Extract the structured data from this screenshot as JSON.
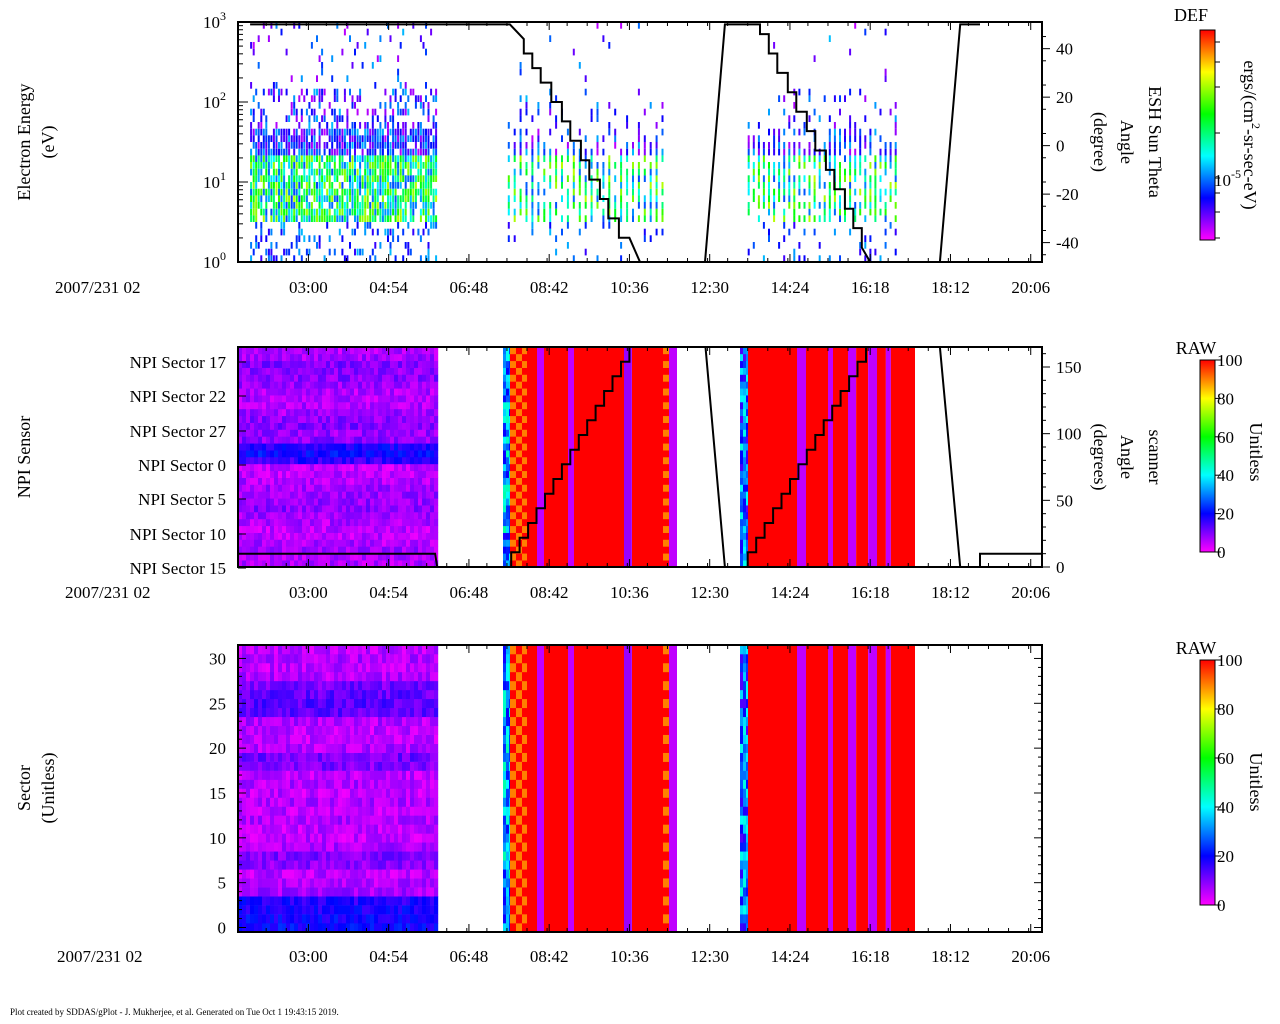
{
  "footer": "Plot created by SDDAS/gPlot - J. Mukherjee, et al.  Generated on Tue Oct 1 19:43:15 2019.",
  "time_axis": {
    "date_label": "2007/231 02",
    "range_hours": [
      1.333,
      20.367
    ],
    "ticks": [
      "03:00",
      "04:54",
      "06:48",
      "08:42",
      "10:36",
      "12:30",
      "14:24",
      "16:18",
      "18:12",
      "20:06"
    ],
    "tick_hours": [
      3.0,
      4.9,
      6.8,
      8.7,
      10.6,
      12.5,
      14.4,
      16.3,
      18.2,
      20.1
    ]
  },
  "colors": {
    "line": "#000000",
    "frame": "#000000"
  },
  "chart_data": [
    {
      "type": "heatmap",
      "ylabel": [
        "Electron Energy",
        "(eV)"
      ],
      "yscale": "log",
      "ylim": [
        1,
        1000
      ],
      "yticks": [
        {
          "base": "10",
          "exp": "0",
          "v": 1
        },
        {
          "base": "10",
          "exp": "1",
          "v": 10
        },
        {
          "base": "10",
          "exp": "2",
          "v": 100
        },
        {
          "base": "10",
          "exp": "3",
          "v": 1000
        }
      ],
      "data_intervals": [
        {
          "start": 1.62,
          "end": 6.0,
          "column_spacing_h": 0.06
        },
        {
          "start": 7.72,
          "end": 11.37,
          "column_spacing_h": 0.14
        },
        {
          "start": 13.4,
          "end": 16.96,
          "column_spacing_h": 0.12
        }
      ],
      "colorbar": {
        "title": "DEF",
        "label_pre": "ergs/(cm",
        "label_sup": "2",
        "label_post": "-sr-sec-eV)",
        "tick_base": "10",
        "tick_exp": "-5",
        "tick_level": 0.3
      },
      "right_axis": {
        "label": [
          "ESH Sun Theta",
          "Angle",
          "(degree)"
        ],
        "ylim": [
          -48,
          51
        ],
        "ticks": [
          "40",
          "20",
          "0",
          "-20",
          "-40"
        ],
        "tick_values": [
          40,
          20,
          0,
          -20,
          -40
        ]
      },
      "line": [
        [
          1.62,
          50
        ],
        [
          7.77,
          50
        ],
        [
          8.1,
          44
        ],
        [
          8.1,
          38
        ],
        [
          8.3,
          38
        ],
        [
          8.3,
          32
        ],
        [
          8.5,
          32
        ],
        [
          8.5,
          26
        ],
        [
          8.75,
          26
        ],
        [
          8.75,
          18
        ],
        [
          9.0,
          18
        ],
        [
          9.0,
          10
        ],
        [
          9.2,
          10
        ],
        [
          9.2,
          2
        ],
        [
          9.45,
          2
        ],
        [
          9.45,
          -6
        ],
        [
          9.65,
          -6
        ],
        [
          9.65,
          -14
        ],
        [
          9.9,
          -14
        ],
        [
          9.9,
          -22
        ],
        [
          10.1,
          -22
        ],
        [
          10.1,
          -30
        ],
        [
          10.35,
          -30
        ],
        [
          10.35,
          -38
        ],
        [
          10.6,
          -38
        ],
        [
          10.85,
          -48
        ],
        [
          12.39,
          -48
        ],
        [
          12.86,
          50
        ],
        [
          13.69,
          50
        ],
        [
          13.69,
          46
        ],
        [
          13.9,
          46
        ],
        [
          13.9,
          38
        ],
        [
          14.1,
          38
        ],
        [
          14.1,
          30
        ],
        [
          14.35,
          30
        ],
        [
          14.35,
          22
        ],
        [
          14.55,
          22
        ],
        [
          14.55,
          14
        ],
        [
          14.8,
          14
        ],
        [
          14.8,
          6
        ],
        [
          15.0,
          6
        ],
        [
          15.0,
          -2
        ],
        [
          15.25,
          -2
        ],
        [
          15.25,
          -10
        ],
        [
          15.45,
          -10
        ],
        [
          15.45,
          -18
        ],
        [
          15.7,
          -18
        ],
        [
          15.7,
          -26
        ],
        [
          15.9,
          -26
        ],
        [
          15.9,
          -34
        ],
        [
          16.1,
          -34
        ],
        [
          16.1,
          -42
        ],
        [
          16.3,
          -48
        ],
        [
          17.95,
          -48
        ],
        [
          18.43,
          50
        ],
        [
          18.9,
          50
        ]
      ]
    },
    {
      "type": "heatmap",
      "ylabel": [
        "NPI Sensor"
      ],
      "ycategories": [
        "NPI Sector 17",
        "NPI Sector 22",
        "NPI Sector 27",
        "NPI Sector 0",
        "NPI Sector 5",
        "NPI Sector 10",
        "NPI Sector 15"
      ],
      "colorbar": {
        "title": "RAW",
        "label": "Unitless",
        "ticks": [
          "100",
          "80",
          "60",
          "40",
          "20",
          "0"
        ],
        "tick_values": [
          100,
          80,
          60,
          40,
          20,
          0
        ]
      },
      "right_axis": {
        "label": [
          "scanner",
          "Angle",
          "(degrees)"
        ],
        "ylim": [
          0,
          165
        ],
        "ticks": [
          "150",
          "100",
          "50",
          "0"
        ],
        "tick_values": [
          150,
          100,
          50,
          0
        ]
      },
      "row_mean_counts": [
        6,
        6,
        7,
        6,
        5,
        5,
        6,
        7,
        9,
        8,
        8,
        7,
        6,
        5,
        5,
        16,
        20,
        18,
        9,
        8,
        10,
        9,
        7,
        6,
        6,
        6,
        8,
        9,
        9,
        10,
        7,
        6
      ],
      "low_block": [
        1.333,
        5.997
      ],
      "segments": [
        [
          7.607,
          7.773,
          30,
          "var"
        ],
        [
          7.773,
          8.175,
          95,
          "checker"
        ],
        [
          8.175,
          8.412,
          100
        ],
        [
          8.412,
          8.578,
          5
        ],
        [
          8.578,
          9.146,
          100
        ],
        [
          9.146,
          9.288,
          5
        ],
        [
          9.288,
          10.472,
          100
        ],
        [
          10.472,
          10.66,
          8
        ],
        [
          10.66,
          11.395,
          100
        ],
        [
          11.395,
          11.537,
          90,
          "checker"
        ],
        [
          11.537,
          11.726,
          5
        ],
        [
          13.218,
          13.407,
          25,
          "var"
        ],
        [
          13.407,
          14.567,
          100
        ],
        [
          14.567,
          14.78,
          5
        ],
        [
          14.78,
          15.3,
          100
        ],
        [
          15.3,
          15.42,
          5
        ],
        [
          15.42,
          15.775,
          100
        ],
        [
          15.775,
          15.965,
          5
        ],
        [
          15.965,
          16.25,
          100
        ],
        [
          16.25,
          16.46,
          5
        ],
        [
          16.46,
          16.67,
          100
        ],
        [
          16.67,
          16.79,
          5
        ],
        [
          16.79,
          17.36,
          100
        ]
      ],
      "line": [
        [
          1.333,
          10
        ],
        [
          6.0,
          10
        ],
        [
          6.05,
          0
        ],
        [
          7.6,
          0
        ],
        [
          7.8,
          0
        ],
        [
          7.8,
          11
        ],
        [
          8.0,
          11
        ],
        [
          8.0,
          22
        ],
        [
          8.2,
          22
        ],
        [
          8.2,
          33
        ],
        [
          8.4,
          33
        ],
        [
          8.4,
          44
        ],
        [
          8.6,
          44
        ],
        [
          8.6,
          55
        ],
        [
          8.8,
          55
        ],
        [
          8.8,
          66
        ],
        [
          9.0,
          66
        ],
        [
          9.0,
          77
        ],
        [
          9.2,
          77
        ],
        [
          9.2,
          88
        ],
        [
          9.4,
          88
        ],
        [
          9.4,
          99
        ],
        [
          9.6,
          99
        ],
        [
          9.6,
          110
        ],
        [
          9.8,
          110
        ],
        [
          9.8,
          121
        ],
        [
          10.0,
          121
        ],
        [
          10.0,
          132
        ],
        [
          10.2,
          132
        ],
        [
          10.2,
          143
        ],
        [
          10.4,
          143
        ],
        [
          10.4,
          154
        ],
        [
          10.6,
          154
        ],
        [
          10.6,
          165
        ],
        [
          12.4,
          165
        ],
        [
          12.86,
          0
        ],
        [
          13.2,
          0
        ],
        [
          13.4,
          0
        ],
        [
          13.4,
          11
        ],
        [
          13.6,
          11
        ],
        [
          13.6,
          22
        ],
        [
          13.8,
          22
        ],
        [
          13.8,
          33
        ],
        [
          14.0,
          33
        ],
        [
          14.0,
          44
        ],
        [
          14.2,
          44
        ],
        [
          14.2,
          55
        ],
        [
          14.4,
          55
        ],
        [
          14.4,
          66
        ],
        [
          14.6,
          66
        ],
        [
          14.6,
          77
        ],
        [
          14.8,
          77
        ],
        [
          14.8,
          88
        ],
        [
          15.0,
          88
        ],
        [
          15.0,
          99
        ],
        [
          15.2,
          99
        ],
        [
          15.2,
          110
        ],
        [
          15.4,
          110
        ],
        [
          15.4,
          121
        ],
        [
          15.6,
          121
        ],
        [
          15.6,
          132
        ],
        [
          15.8,
          132
        ],
        [
          15.8,
          143
        ],
        [
          16.0,
          143
        ],
        [
          16.0,
          154
        ],
        [
          16.2,
          154
        ],
        [
          16.2,
          165
        ],
        [
          17.95,
          165
        ],
        [
          18.43,
          0
        ],
        [
          18.9,
          0
        ],
        [
          18.9,
          10
        ],
        [
          20.367,
          10
        ]
      ]
    },
    {
      "type": "heatmap",
      "ylabel": [
        "Sector",
        "(Unitless)"
      ],
      "ylim": [
        -0.5,
        31.5
      ],
      "yticks": [
        "0",
        "5",
        "10",
        "15",
        "20",
        "25",
        "30"
      ],
      "ytick_values": [
        0,
        5,
        10,
        15,
        20,
        25,
        30
      ],
      "colorbar": {
        "title": "RAW",
        "label": "Unitless",
        "ticks": [
          "100",
          "80",
          "60",
          "40",
          "20",
          "0"
        ],
        "tick_values": [
          100,
          80,
          60,
          40,
          20,
          0
        ]
      },
      "row_mean_counts": [
        20,
        19,
        18,
        17,
        7,
        6,
        5,
        9,
        10,
        6,
        5,
        5,
        6,
        5,
        6,
        5,
        6,
        5,
        10,
        11,
        6,
        5,
        5,
        6,
        12,
        13,
        12,
        11,
        6,
        5,
        6,
        5
      ],
      "low_block": [
        1.333,
        5.997
      ],
      "segments": [
        [
          7.607,
          7.773,
          30,
          "var"
        ],
        [
          7.773,
          8.175,
          95,
          "checker"
        ],
        [
          8.175,
          8.412,
          100
        ],
        [
          8.412,
          8.578,
          5
        ],
        [
          8.578,
          9.146,
          100
        ],
        [
          9.146,
          9.288,
          5
        ],
        [
          9.288,
          10.472,
          100
        ],
        [
          10.472,
          10.66,
          8
        ],
        [
          10.66,
          11.395,
          100
        ],
        [
          11.395,
          11.537,
          90,
          "checker"
        ],
        [
          11.537,
          11.726,
          5
        ],
        [
          13.218,
          13.407,
          25,
          "var"
        ],
        [
          13.407,
          14.567,
          100
        ],
        [
          14.567,
          14.78,
          5
        ],
        [
          14.78,
          15.3,
          100
        ],
        [
          15.3,
          15.42,
          5
        ],
        [
          15.42,
          15.775,
          100
        ],
        [
          15.775,
          15.965,
          5
        ],
        [
          15.965,
          16.25,
          100
        ],
        [
          16.25,
          16.46,
          5
        ],
        [
          16.46,
          16.67,
          100
        ],
        [
          16.67,
          16.79,
          5
        ],
        [
          16.79,
          17.36,
          100
        ]
      ]
    }
  ]
}
